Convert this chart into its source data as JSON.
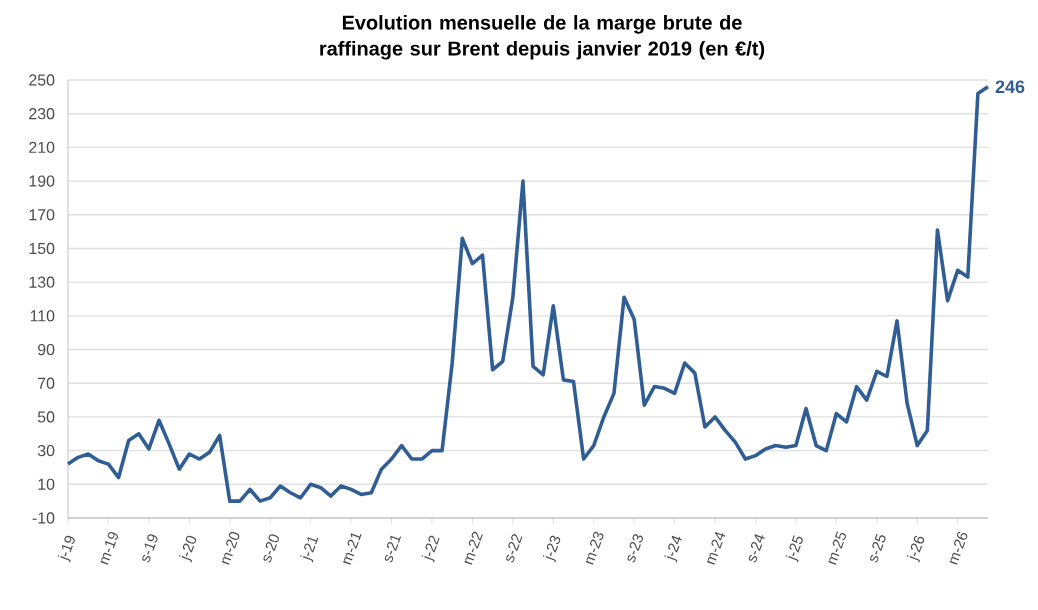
{
  "chart_data": {
    "type": "line",
    "title": "Evolution mensuelle de la marge brute de raffinage sur Brent depuis janvier 2019 (en €/t)",
    "categories": [
      "j-19",
      null,
      null,
      null,
      "m-19",
      null,
      null,
      null,
      "s-19",
      null,
      null,
      null,
      "j-20",
      null,
      null,
      null,
      "m-20",
      null,
      null,
      null,
      "s-20",
      null,
      null,
      null,
      "j-21",
      null,
      null,
      null,
      "m-21",
      null,
      null,
      null,
      "s-21",
      null,
      null,
      null,
      "j-22",
      null,
      null,
      null,
      "m-22",
      null,
      null,
      null,
      "s-22",
      null,
      null,
      null,
      "j-23",
      null,
      null,
      null,
      "m-23",
      null,
      null,
      null,
      "s-23",
      null,
      null,
      null,
      "j-24",
      null,
      null,
      null,
      "m-24",
      null,
      null,
      null,
      "s-24",
      null,
      null,
      null,
      "j-25",
      null,
      null,
      null,
      "m-25",
      null,
      null,
      null,
      "s-25",
      null,
      null,
      null,
      "j-26",
      null,
      null,
      null,
      "m-26",
      null,
      null,
      null
    ],
    "values": [
      22,
      26,
      28,
      24,
      22,
      14,
      36,
      40,
      31,
      48,
      34,
      19,
      28,
      25,
      29,
      39,
      0,
      0,
      7,
      0,
      2,
      9,
      5,
      2,
      10,
      8,
      3,
      9,
      7,
      4,
      5,
      19,
      25,
      33,
      25,
      25,
      30,
      30,
      82,
      156,
      141,
      146,
      78,
      83,
      121,
      190,
      80,
      75,
      116,
      72,
      71,
      25,
      33,
      50,
      64,
      121,
      108,
      57,
      68,
      67,
      64,
      82,
      76,
      44,
      50,
      42,
      35,
      25,
      27,
      31,
      33,
      32,
      33,
      55,
      33,
      30,
      52,
      47,
      68,
      60,
      77,
      74,
      107,
      58,
      33,
      42,
      161,
      119,
      137,
      133,
      242,
      246
    ],
    "value_labels": [
      null,
      null,
      null,
      null,
      null,
      null,
      null,
      null,
      null,
      null,
      null,
      null,
      null,
      null,
      null,
      null,
      null,
      null,
      null,
      null,
      null,
      null,
      null,
      null,
      null,
      null,
      null,
      null,
      null,
      null,
      null,
      null,
      null,
      null,
      null,
      null,
      null,
      null,
      null,
      null,
      null,
      null,
      null,
      null,
      null,
      null,
      null,
      null,
      null,
      null,
      null,
      null,
      null,
      null,
      null,
      null,
      null,
      null,
      null,
      null,
      null,
      null,
      null,
      null,
      null,
      null,
      null,
      null,
      null,
      null,
      null,
      null,
      null,
      null,
      null,
      null,
      null,
      null,
      null,
      null,
      null,
      null,
      null,
      null,
      null,
      null,
      null,
      null,
      null,
      null,
      null,
      "246"
    ],
    "color": "#2f5d94",
    "ylim": [
      -10,
      250
    ],
    "yticks": [
      -10,
      10,
      30,
      50,
      70,
      90,
      110,
      130,
      150,
      170,
      190,
      210,
      230,
      250
    ],
    "grid": "y",
    "marker": "none",
    "line_style": "solid"
  }
}
